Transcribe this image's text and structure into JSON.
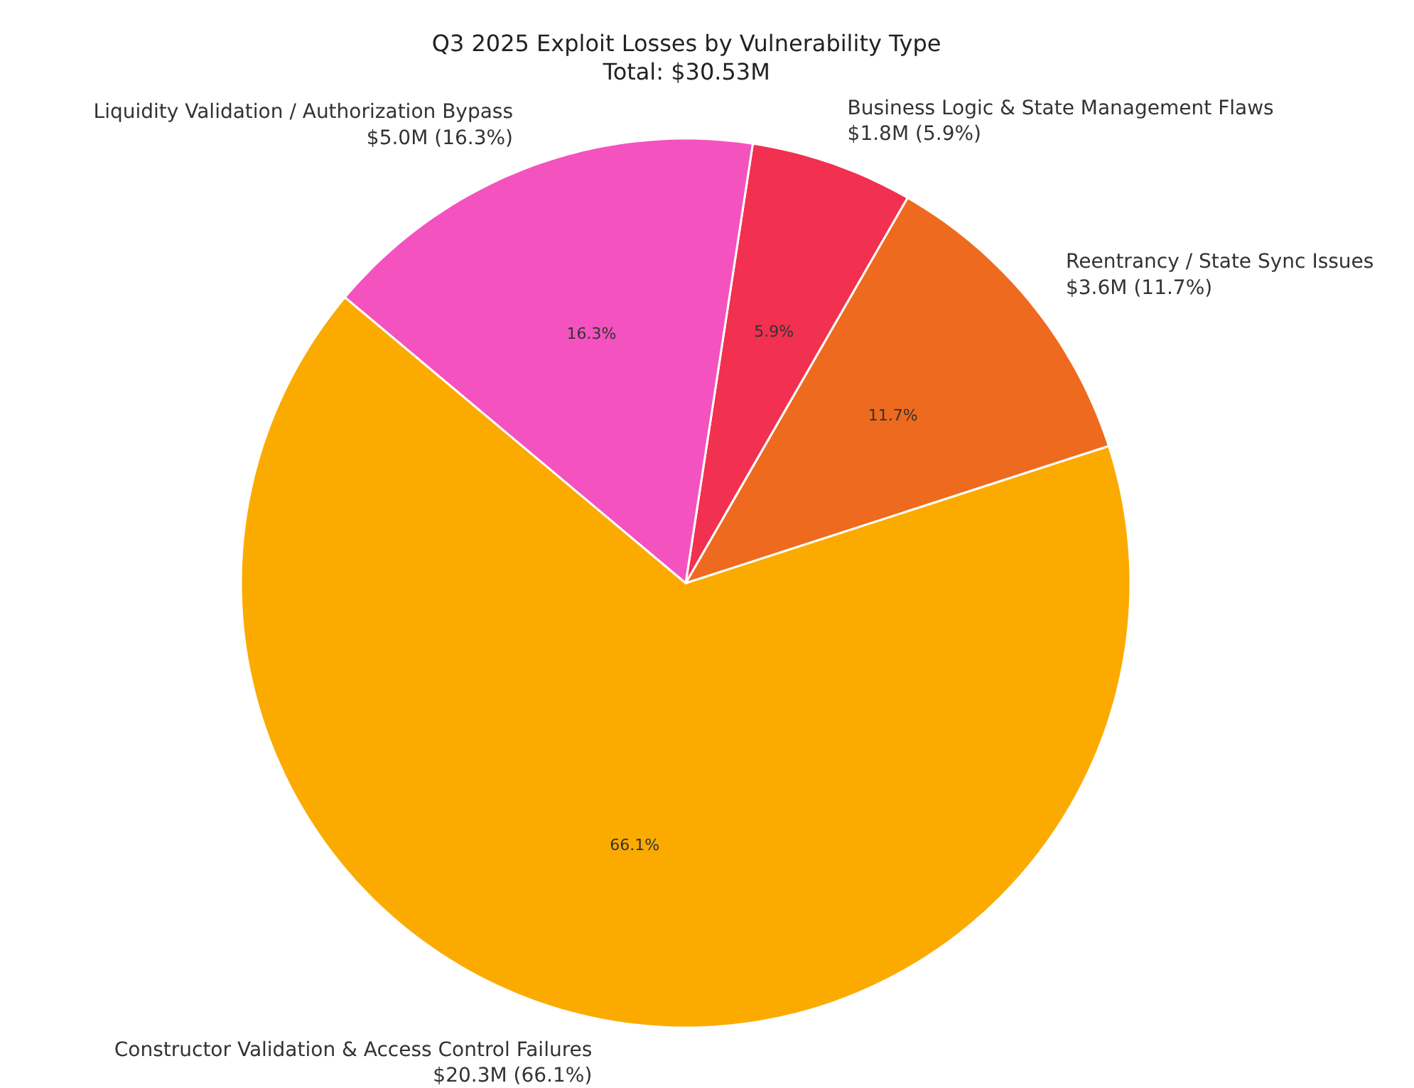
{
  "chart_data": {
    "type": "pie",
    "title": "Q3 2025 Exploit Losses by Vulnerability Type",
    "subtitle": "Total: $30.53M",
    "categories": [
      "Constructor Validation & Access Control Failures\n$20.3M (66.1%)",
      "Reentrancy / State Sync Issues\n$3.6M (11.7%)",
      "Business Logic & State Management Flaws\n$1.8M (5.9%)",
      "Liquidity Validation / Authorization Bypass\n$5.0M (16.3%)"
    ],
    "values": [
      66.1,
      11.7,
      5.9,
      16.3
    ],
    "value_labels": [
      "66.1%",
      "11.7%",
      "5.9%",
      "16.3%"
    ],
    "colors": [
      "#fbab00",
      "#ee6a1e",
      "#f2304f",
      "#f452be"
    ]
  }
}
